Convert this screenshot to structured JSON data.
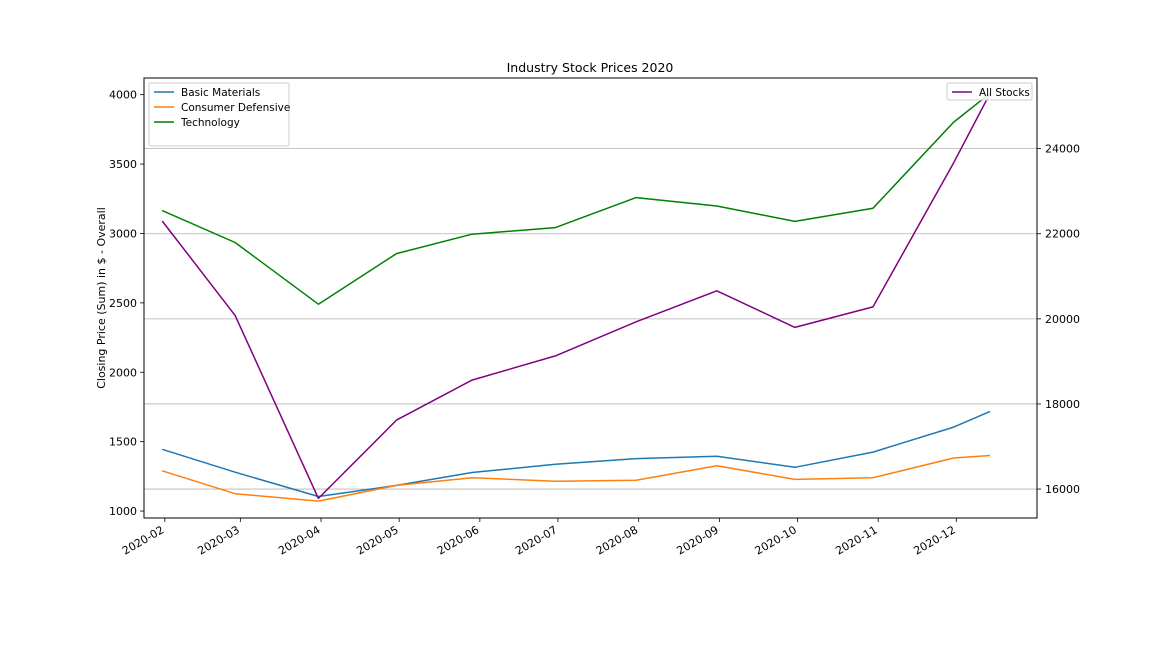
{
  "chart_data": {
    "type": "line",
    "title": "Industry Stock Prices 2020",
    "ylabel": "Closing Price (Sum) in $ - Overall",
    "xlabel": "",
    "x_tick_labels": [
      "2020-02",
      "2020-03",
      "2020-04",
      "2020-05",
      "2020-06",
      "2020-07",
      "2020-08",
      "2020-09",
      "2020-10",
      "2020-11",
      "2020-12"
    ],
    "x": [
      "2020-01-31",
      "2020-02-28",
      "2020-03-31",
      "2020-04-30",
      "2020-05-29",
      "2020-06-30",
      "2020-07-31",
      "2020-08-31",
      "2020-09-30",
      "2020-10-30",
      "2020-11-30",
      "2020-12-14"
    ],
    "left_axis": {
      "ylim": [
        950,
        4120
      ],
      "ticks": [
        1000,
        1500,
        2000,
        2500,
        3000,
        3500,
        4000
      ],
      "series": [
        {
          "name": "Basic Materials",
          "color": "#1f77b4",
          "values": [
            1445,
            1280,
            1105,
            1185,
            1278,
            1337,
            1378,
            1395,
            1315,
            1425,
            1605,
            1718
          ]
        },
        {
          "name": "Consumer Defensive",
          "color": "#ff7f0e",
          "values": [
            1290,
            1125,
            1072,
            1185,
            1240,
            1215,
            1222,
            1327,
            1228,
            1240,
            1382,
            1400
          ]
        },
        {
          "name": "Technology",
          "color": "#008000",
          "values": [
            3165,
            2935,
            2490,
            2855,
            2995,
            3042,
            3258,
            3198,
            3087,
            3182,
            3802,
            4010
          ]
        }
      ],
      "legend_position": "top-left"
    },
    "right_axis": {
      "ylim": [
        15320,
        25660
      ],
      "ticks": [
        16000,
        18000,
        20000,
        22000,
        24000
      ],
      "grid": true,
      "series": [
        {
          "name": "All Stocks",
          "color": "#800080",
          "values": [
            22300,
            20080,
            15780,
            17620,
            18560,
            19130,
            19930,
            20660,
            19800,
            20280,
            23670,
            25300
          ]
        }
      ],
      "legend_position": "top-right"
    }
  }
}
